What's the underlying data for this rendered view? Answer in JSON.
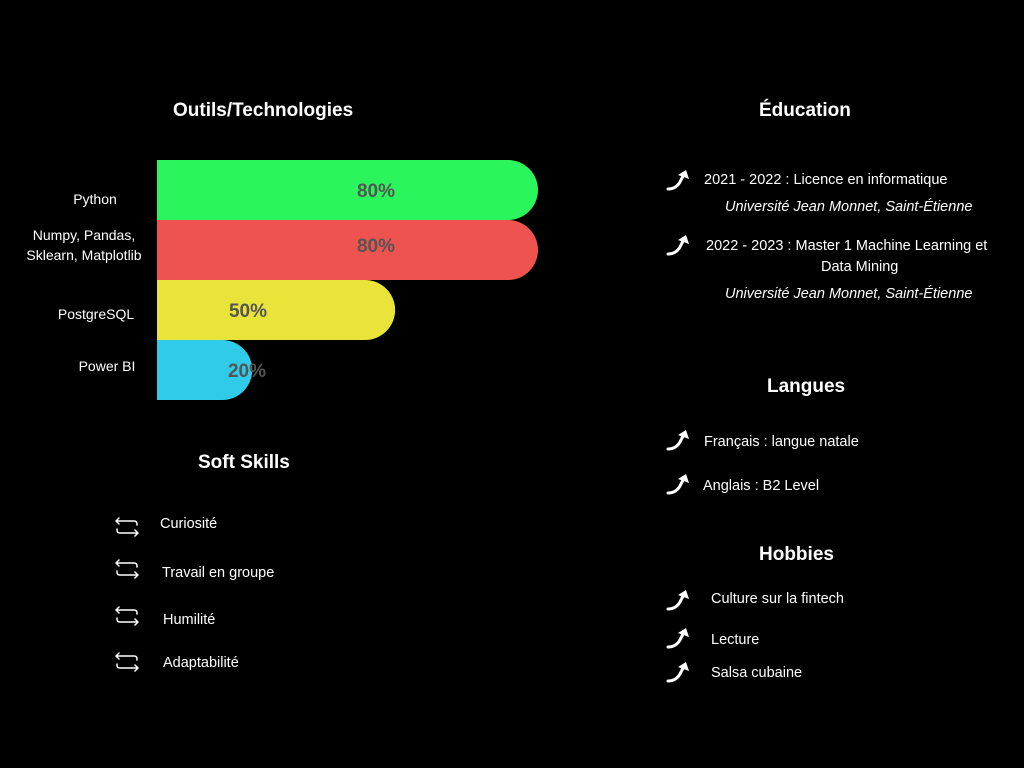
{
  "skills": {
    "title": "Outils/Technologies",
    "chart_data": {
      "type": "bar",
      "orientation": "horizontal",
      "categories": [
        "Python",
        "Numpy, Pandas,\nSklearn, Matplotlib",
        "PostgreSQL",
        "Power BI"
      ],
      "values": [
        80,
        80,
        50,
        20
      ],
      "value_labels": [
        "80%",
        "80%",
        "50%",
        "20%"
      ],
      "colors": [
        "#2af55c",
        "#ef5350",
        "#e8e43a",
        "#30cbe9"
      ],
      "label_color": "#555555",
      "xlim": [
        0,
        100
      ],
      "grid": false
    }
  },
  "soft_skills": {
    "title": "Soft Skills",
    "items": [
      "Curiosité",
      "Travail en groupe",
      "Humilité",
      "Adaptabilité"
    ]
  },
  "education": {
    "title": "Éducation",
    "items": [
      {
        "title": "2021 - 2022 : Licence en informatique",
        "institution": "Université Jean Monnet, Saint-Étienne"
      },
      {
        "title_line1": "2022 - 2023 : Master 1 Machine Learning et",
        "title_line2": "Data Mining",
        "institution": "Université Jean Monnet, Saint-Étienne"
      }
    ]
  },
  "languages": {
    "title": "Langues",
    "items": [
      "Français : langue natale",
      "Anglais : B2 Level"
    ]
  },
  "hobbies": {
    "title": "Hobbies",
    "items": [
      "Culture sur la fintech",
      "Lecture",
      "Salsa cubaine"
    ]
  },
  "icons": {
    "list_bullet": "curved-arrow-icon",
    "soft_bullet": "swap-arrows-icon"
  }
}
